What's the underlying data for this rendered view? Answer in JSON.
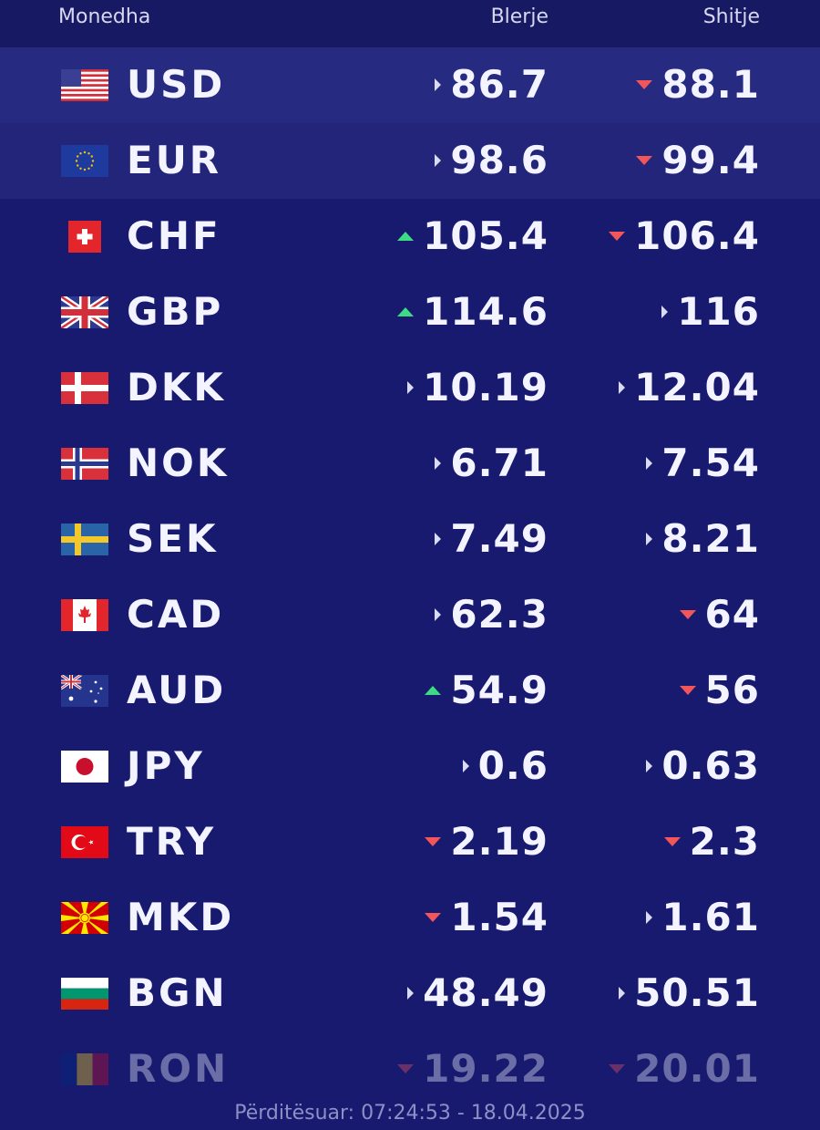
{
  "header": {
    "currency": "Monedha",
    "buy": "Blerje",
    "sell": "Shitje"
  },
  "colors": {
    "background": "#181a70",
    "up": "#3ddc84",
    "down": "#f2555a",
    "flat": "#d9dbf0"
  },
  "rows": [
    {
      "code": "USD",
      "flag": "us-flag-icon",
      "buy": "86.7",
      "buy_trend": "flat",
      "sell": "88.1",
      "sell_trend": "down"
    },
    {
      "code": "EUR",
      "flag": "eu-flag-icon",
      "buy": "98.6",
      "buy_trend": "flat",
      "sell": "99.4",
      "sell_trend": "down"
    },
    {
      "code": "CHF",
      "flag": "ch-flag-icon",
      "buy": "105.4",
      "buy_trend": "up",
      "sell": "106.4",
      "sell_trend": "down"
    },
    {
      "code": "GBP",
      "flag": "gb-flag-icon",
      "buy": "114.6",
      "buy_trend": "up",
      "sell": "116",
      "sell_trend": "flat"
    },
    {
      "code": "DKK",
      "flag": "dk-flag-icon",
      "buy": "10.19",
      "buy_trend": "flat",
      "sell": "12.04",
      "sell_trend": "flat"
    },
    {
      "code": "NOK",
      "flag": "no-flag-icon",
      "buy": "6.71",
      "buy_trend": "flat",
      "sell": "7.54",
      "sell_trend": "flat"
    },
    {
      "code": "SEK",
      "flag": "se-flag-icon",
      "buy": "7.49",
      "buy_trend": "flat",
      "sell": "8.21",
      "sell_trend": "flat"
    },
    {
      "code": "CAD",
      "flag": "ca-flag-icon",
      "buy": "62.3",
      "buy_trend": "flat",
      "sell": "64",
      "sell_trend": "down"
    },
    {
      "code": "AUD",
      "flag": "au-flag-icon",
      "buy": "54.9",
      "buy_trend": "up",
      "sell": "56",
      "sell_trend": "down"
    },
    {
      "code": "JPY",
      "flag": "jp-flag-icon",
      "buy": "0.6",
      "buy_trend": "flat",
      "sell": "0.63",
      "sell_trend": "flat"
    },
    {
      "code": "TRY",
      "flag": "tr-flag-icon",
      "buy": "2.19",
      "buy_trend": "down",
      "sell": "2.3",
      "sell_trend": "down"
    },
    {
      "code": "MKD",
      "flag": "mk-flag-icon",
      "buy": "1.54",
      "buy_trend": "down",
      "sell": "1.61",
      "sell_trend": "flat"
    },
    {
      "code": "BGN",
      "flag": "bg-flag-icon",
      "buy": "48.49",
      "buy_trend": "flat",
      "sell": "50.51",
      "sell_trend": "flat"
    },
    {
      "code": "RON",
      "flag": "ro-flag-icon",
      "buy": "19.22",
      "buy_trend": "down",
      "sell": "20.01",
      "sell_trend": "down"
    }
  ],
  "footer": {
    "updated": "Përditësuar: 07:24:53 - 18.04.2025"
  }
}
